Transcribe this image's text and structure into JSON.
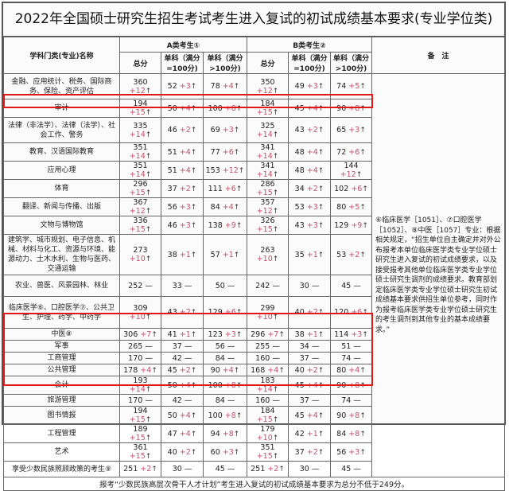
{
  "title": "2022年全国硕士研究生招生考试考生进入复试的初试成绩基本要求(专业学位类)",
  "header": {
    "subject": "学科门类(专业)名称",
    "groupA": "A类考生①",
    "groupB": "B类考生②",
    "total": "总分",
    "single100": "单科（满分=100分)",
    "single_gt100": "单科（满分>100分)",
    "notes": "备　注"
  },
  "arrow": "↑",
  "dash": "—",
  "highlight_color": "#e01818",
  "rows": [
    {
      "name": "金融、应用统计、税务、国际商务、保险、资产评估",
      "cells": [
        [
          "360",
          "+12"
        ],
        [
          "52",
          "+3"
        ],
        [
          "78",
          "+4"
        ],
        [
          "350",
          "+12"
        ],
        [
          "49",
          "+3"
        ],
        [
          "74",
          "+5"
        ]
      ]
    },
    {
      "name": "审计",
      "cells": [
        [
          "194",
          "+15"
        ],
        [
          "50",
          "+4"
        ],
        [
          "100",
          "+8"
        ],
        [
          "184",
          "+15"
        ],
        [
          "45",
          "+4"
        ],
        [
          "90",
          "+8"
        ]
      ]
    },
    {
      "name": "法律（非法学）、法律（法学）、社会工作、警务",
      "cells": [
        [
          "335",
          "+14"
        ],
        [
          "46",
          "+2"
        ],
        [
          "69",
          "+3"
        ],
        [
          "325",
          "+14"
        ],
        [
          "43",
          "+2"
        ],
        [
          "65",
          "+3"
        ]
      ]
    },
    {
      "name": "教育、汉语国际教育",
      "cells": [
        [
          "351",
          "+14"
        ],
        [
          "51",
          "+4"
        ],
        [
          "77",
          "+6"
        ],
        [
          "341",
          "+14"
        ],
        [
          "48",
          "+4"
        ],
        [
          "72",
          "+6"
        ]
      ]
    },
    {
      "name": "应用心理",
      "cells": [
        [
          "351",
          "+14"
        ],
        [
          "51",
          "+4"
        ],
        [
          "153",
          "+12"
        ],
        [
          "341",
          "+14"
        ],
        [
          "48",
          "+4"
        ],
        [
          "144",
          "+12"
        ]
      ]
    },
    {
      "name": "体育",
      "cells": [
        [
          "296",
          "+15"
        ],
        [
          "37",
          "+2"
        ],
        [
          "111",
          "+6"
        ],
        [
          "286",
          "+15"
        ],
        [
          "34",
          "+2"
        ],
        [
          "102",
          "+6"
        ]
      ]
    },
    {
      "name": "翻译、新闻与传播、出版",
      "cells": [
        [
          "367",
          "+12"
        ],
        [
          "56",
          "+3"
        ],
        [
          "84",
          "+4"
        ],
        [
          "357",
          "+12"
        ],
        [
          "53",
          "+3"
        ],
        [
          "80",
          "+5"
        ]
      ]
    },
    {
      "name": "文物与博物馆",
      "cells": [
        [
          "336",
          "+15"
        ],
        [
          "46",
          "+3"
        ],
        [
          "138",
          "+9"
        ],
        [
          "326",
          "+15"
        ],
        [
          "43",
          "+3"
        ],
        [
          "129",
          "+9"
        ]
      ]
    },
    {
      "name": "建筑学、城市规划、电子信息、机械、材料与化工、资源与环境、能源动力、土木水利、生物与医药、交通运输",
      "cells": [
        [
          "273",
          "+10"
        ],
        [
          "38",
          "+1"
        ],
        [
          "57",
          "+1"
        ],
        [
          "263",
          "+10"
        ],
        [
          "35",
          "+1"
        ],
        [
          "53",
          "+2"
        ]
      ]
    },
    {
      "name": "农业、兽医、风景园林、林业",
      "cells": [
        [
          "252",
          ""
        ],
        [
          "33",
          ""
        ],
        [
          "50",
          ""
        ],
        [
          "242",
          ""
        ],
        [
          "30",
          ""
        ],
        [
          "45",
          ""
        ]
      ]
    },
    {
      "name": "临床医学⑥、口腔医学⑦、公共卫生、护理、药学、中药学",
      "cells": [
        [
          "309",
          "+10"
        ],
        [
          "43",
          "+2"
        ],
        [
          "129",
          "+6"
        ],
        [
          "299",
          "+10"
        ],
        [
          "40",
          "+2"
        ],
        [
          "120",
          "+6"
        ]
      ]
    },
    {
      "name": "中医⑧",
      "cells": [
        [
          "306",
          "+7"
        ],
        [
          "41",
          "+1"
        ],
        [
          "123",
          "+3"
        ],
        [
          "296",
          "+7"
        ],
        [
          "38",
          "+1"
        ],
        [
          "114",
          "+3"
        ]
      ]
    },
    {
      "name": "军事",
      "cells": [
        [
          "265",
          ""
        ],
        [
          "37",
          ""
        ],
        [
          "56",
          ""
        ],
        [
          "255",
          ""
        ],
        [
          "34",
          ""
        ],
        [
          "51",
          ""
        ]
      ]
    },
    {
      "name": "工商管理",
      "cells": [
        [
          "170",
          ""
        ],
        [
          "42",
          ""
        ],
        [
          "84",
          ""
        ],
        [
          "160",
          ""
        ],
        [
          "37",
          ""
        ],
        [
          "74",
          ""
        ]
      ]
    },
    {
      "name": "公共管理",
      "cells": [
        [
          "178",
          "+4"
        ],
        [
          "45",
          "+2"
        ],
        [
          "90",
          "+4"
        ],
        [
          "168",
          "+4"
        ],
        [
          "40",
          "+2"
        ],
        [
          "80",
          "+4"
        ]
      ]
    },
    {
      "name": "会计",
      "cells": [
        [
          "193",
          "+14"
        ],
        [
          "50",
          "+4"
        ],
        [
          "100",
          "+8"
        ],
        [
          "183",
          "+14"
        ],
        [
          "45",
          "+4"
        ],
        [
          "90",
          "+8"
        ]
      ]
    },
    {
      "name": "旅游管理",
      "cells": [
        [
          "170",
          ""
        ],
        [
          "42",
          ""
        ],
        [
          "84",
          ""
        ],
        [
          "160",
          ""
        ],
        [
          "37",
          ""
        ],
        [
          "74",
          ""
        ]
      ]
    },
    {
      "name": "图书情报",
      "cells": [
        [
          "194",
          "+15"
        ],
        [
          "50",
          "+4"
        ],
        [
          "100",
          "+8"
        ],
        [
          "184",
          "+15"
        ],
        [
          "45",
          "+4"
        ],
        [
          "90",
          "+8"
        ]
      ]
    },
    {
      "name": "工程管理",
      "cells": [
        [
          "189",
          "+15"
        ],
        [
          "47",
          "+4"
        ],
        [
          "94",
          "+8"
        ],
        [
          "179",
          "+10"
        ],
        [
          "42",
          "+1"
        ],
        [
          "84",
          "+8"
        ]
      ]
    },
    {
      "name": "艺术",
      "cells": [
        [
          "361",
          "+15"
        ],
        [
          "40",
          "+2"
        ],
        [
          "60",
          "+3"
        ],
        [
          "351",
          "+15"
        ],
        [
          "37",
          "+2"
        ],
        [
          "56",
          "+3"
        ]
      ]
    },
    {
      "name": "享受少数民族照顾政策的考生⑨",
      "cells": [
        [
          "251",
          "+2"
        ],
        [
          "30",
          ""
        ],
        [
          "45",
          ""
        ],
        [
          "251",
          "+2"
        ],
        [
          "30",
          ""
        ],
        [
          "45",
          ""
        ]
      ]
    }
  ],
  "note": "⑥临床医学［1051］、⑦口腔医学［1052］、⑧中医［1057］专业：根据相关规定，“招生单位自主确定并对外公布报考本单位临床医学类专业学位硕士研究生进入复试的初试成绩要求，以及接受报考其他单位临床医学类专业学位硕士研究生调剂的成绩要求。教育部划定临床医学类专业学位硕士研究生初试成绩基本要求供招生单位参考，同时作为报考临床医学类专业学位硕士研究生的考生调剂到其他专业的基本成绩要求。”",
  "footer": "报考“少数民族高层次骨干人才计划”考生进入复试的初试成绩基本要求为总分不低于249分。"
}
